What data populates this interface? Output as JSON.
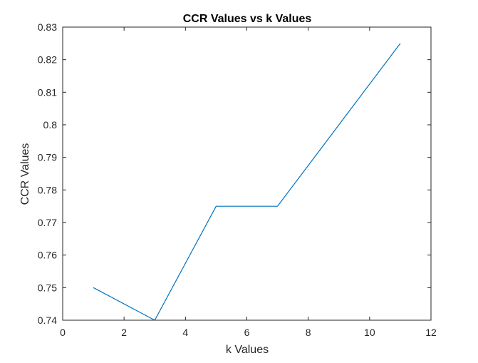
{
  "chart_data": {
    "type": "line",
    "title": "CCR Values vs k Values",
    "xlabel": "k Values",
    "ylabel": "CCR Values",
    "xlim": [
      0,
      12
    ],
    "ylim": [
      0.74,
      0.83
    ],
    "xticks": [
      0,
      2,
      4,
      6,
      8,
      10,
      12
    ],
    "xtick_labels": [
      "0",
      "2",
      "4",
      "6",
      "8",
      "10",
      "12"
    ],
    "yticks": [
      0.74,
      0.75,
      0.76,
      0.77,
      0.78,
      0.79,
      0.8,
      0.81,
      0.82,
      0.83
    ],
    "ytick_labels": [
      "0.74",
      "0.75",
      "0.76",
      "0.77",
      "0.78",
      "0.79",
      "0.8",
      "0.81",
      "0.82",
      "0.83"
    ],
    "grid": false,
    "box": true,
    "series": [
      {
        "x": [
          1,
          3,
          5,
          7,
          9,
          11
        ],
        "y": [
          0.75,
          0.74,
          0.775,
          0.775,
          0.8,
          0.825
        ],
        "color": "#0072BD"
      }
    ],
    "colors": {
      "axis": "#262626",
      "line": "#0072BD",
      "background": "#ffffff"
    }
  }
}
